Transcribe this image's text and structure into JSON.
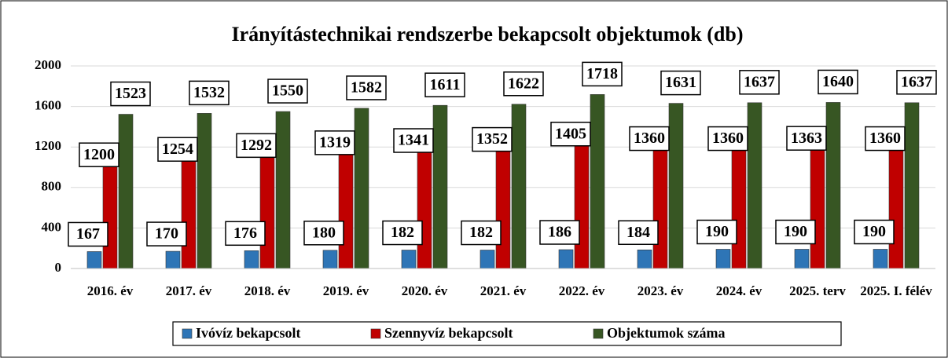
{
  "chart_data": {
    "type": "bar",
    "title": "Irányítástechnikai rendszerbe bekapcsolt objektumok (db)",
    "categories": [
      "2016. év",
      "2017. év",
      "2018. év",
      "2019. év",
      "2020. év",
      "2021. év",
      "2022. év",
      "2023. év",
      "2024. év",
      "2025. terv",
      "2025. I. félév"
    ],
    "series": [
      {
        "name": "Ivóvíz bekapcsolt",
        "color": "#2e75b6",
        "values": [
          167,
          170,
          176,
          180,
          182,
          182,
          186,
          184,
          190,
          190,
          190
        ]
      },
      {
        "name": "Szennyvíz bekapcsolt",
        "color": "#c00000",
        "values": [
          1200,
          1254,
          1292,
          1319,
          1341,
          1352,
          1405,
          1360,
          1360,
          1363,
          1360
        ]
      },
      {
        "name": "Objektumok száma",
        "color": "#375623",
        "values": [
          1523,
          1532,
          1550,
          1582,
          1611,
          1622,
          1718,
          1631,
          1637,
          1640,
          1637
        ]
      }
    ],
    "ylim": [
      0,
      2000
    ],
    "yticks": [
      0,
      400,
      800,
      1200,
      1600,
      2000
    ],
    "grid": true,
    "legend": "bottom"
  }
}
